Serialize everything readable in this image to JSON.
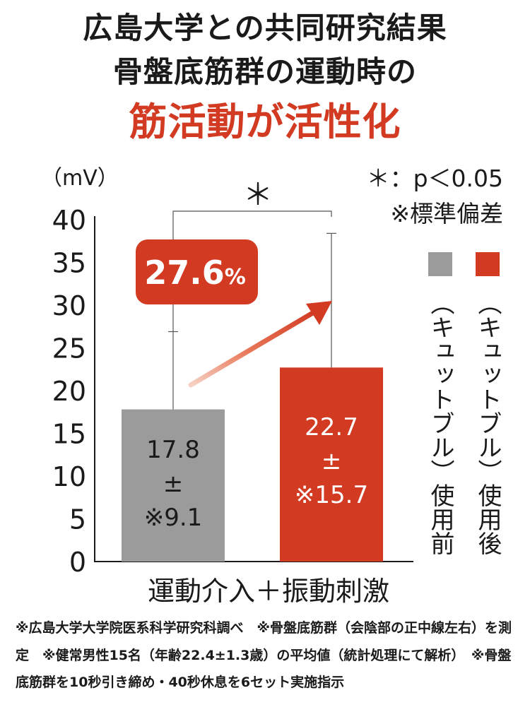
{
  "heading": {
    "line1": "広島大学との共同研究結果",
    "line2": "骨盤底筋群の運動時の",
    "line3": "筋活動が活性化"
  },
  "significance": {
    "marker": "＊",
    "note": "＊：p＜0.05",
    "sd_note": "※標準偏差"
  },
  "increase_badge": {
    "value": "27.6",
    "unit": "%"
  },
  "footnote": "※広島大学大学院医系科学研究科調べ　※骨盤底筋群（会陰部の正中線左右）を測定　※健常男性15名（年齢22.4±1.3歳）の平均値（統計処理にて解析）　※骨盤底筋群を10秒引き締め・40秒休息を6セット実施指示",
  "colors": {
    "before": "#9b9b9b",
    "after": "#d23a22",
    "text": "#1a1a1a"
  },
  "chart_data": {
    "type": "bar",
    "title": "",
    "ylabel": "（mV）",
    "xlabel": "運動介入＋振動刺激",
    "ylim": [
      0,
      40
    ],
    "yticks": [
      0,
      5,
      10,
      15,
      20,
      25,
      30,
      35,
      40
    ],
    "series": [
      {
        "name": "（キュットブル）使用前",
        "value": 17.8,
        "sd": 9.1,
        "label": [
          "17.8",
          "±",
          "※9.1"
        ],
        "color": "#9b9b9b"
      },
      {
        "name": "（キュットブル）使用後",
        "value": 22.7,
        "sd": 15.7,
        "label": [
          "22.7",
          "±",
          "※15.7"
        ],
        "color": "#d23a22"
      }
    ]
  }
}
